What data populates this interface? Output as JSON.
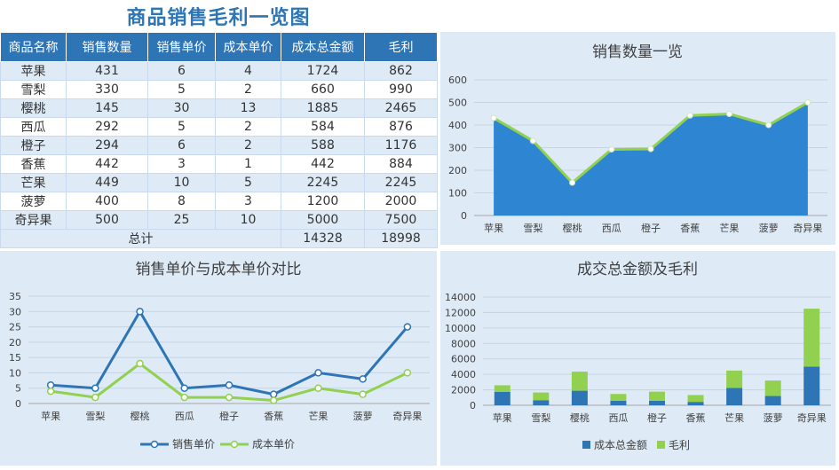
{
  "page_title": "商品销售毛利一览图",
  "table": {
    "headers": [
      "商品名称",
      "销售数量",
      "销售单价",
      "成本单价",
      "成本总金额",
      "毛利"
    ],
    "rows": [
      [
        "苹果",
        "431",
        "6",
        "4",
        "1724",
        "862"
      ],
      [
        "雪梨",
        "330",
        "5",
        "2",
        "660",
        "990"
      ],
      [
        "樱桃",
        "145",
        "30",
        "13",
        "1885",
        "2465"
      ],
      [
        "西瓜",
        "292",
        "5",
        "2",
        "584",
        "876"
      ],
      [
        "橙子",
        "294",
        "6",
        "2",
        "588",
        "1176"
      ],
      [
        "香蕉",
        "442",
        "3",
        "1",
        "442",
        "884"
      ],
      [
        "芒果",
        "449",
        "10",
        "5",
        "2245",
        "2245"
      ],
      [
        "菠萝",
        "400",
        "8",
        "3",
        "1200",
        "2000"
      ],
      [
        "奇异果",
        "500",
        "25",
        "10",
        "5000",
        "7500"
      ]
    ],
    "total": {
      "label": "总计",
      "cost_total": "14328",
      "profit": "18998"
    }
  },
  "colors": {
    "blue": "#2e75b6",
    "area_blue": "#2e86d3",
    "green": "#92d050",
    "panel_bg": "#deebf7"
  },
  "chart_data": [
    {
      "type": "area",
      "title": "销售数量一览",
      "categories": [
        "苹果",
        "雪梨",
        "樱桃",
        "西瓜",
        "橙子",
        "香蕉",
        "芒果",
        "菠萝",
        "奇异果"
      ],
      "series": [
        {
          "values": [
            431,
            330,
            145,
            292,
            294,
            442,
            449,
            400,
            500
          ]
        }
      ],
      "ylim": [
        0,
        600
      ],
      "yticks": [
        0,
        100,
        200,
        300,
        400,
        500,
        600
      ],
      "grid": true,
      "legend": "none"
    },
    {
      "type": "line",
      "title": "销售单价与成本单价对比",
      "categories": [
        "苹果",
        "雪梨",
        "樱桃",
        "西瓜",
        "橙子",
        "香蕉",
        "芒果",
        "菠萝",
        "奇异果"
      ],
      "series": [
        {
          "name": "销售单价",
          "values": [
            6,
            5,
            30,
            5,
            6,
            3,
            10,
            8,
            25
          ]
        },
        {
          "name": "成本单价",
          "values": [
            4,
            2,
            13,
            2,
            2,
            1,
            5,
            3,
            10
          ]
        }
      ],
      "ylim": [
        0,
        35
      ],
      "yticks": [
        0,
        5,
        10,
        15,
        20,
        25,
        30,
        35
      ],
      "grid": true,
      "legend": "bottom"
    },
    {
      "type": "bar",
      "stacked": true,
      "title": "成交总金额及毛利",
      "categories": [
        "苹果",
        "雪梨",
        "樱桃",
        "西瓜",
        "橙子",
        "香蕉",
        "芒果",
        "菠萝",
        "奇异果"
      ],
      "series": [
        {
          "name": "成本总金额",
          "values": [
            1724,
            660,
            1885,
            584,
            588,
            442,
            2245,
            1200,
            5000
          ]
        },
        {
          "name": "毛利",
          "values": [
            862,
            990,
            2465,
            876,
            1176,
            884,
            2245,
            2000,
            7500
          ]
        }
      ],
      "ylim": [
        0,
        14000
      ],
      "yticks": [
        0,
        2000,
        4000,
        6000,
        8000,
        10000,
        12000,
        14000
      ],
      "grid": true,
      "legend": "bottom"
    }
  ]
}
